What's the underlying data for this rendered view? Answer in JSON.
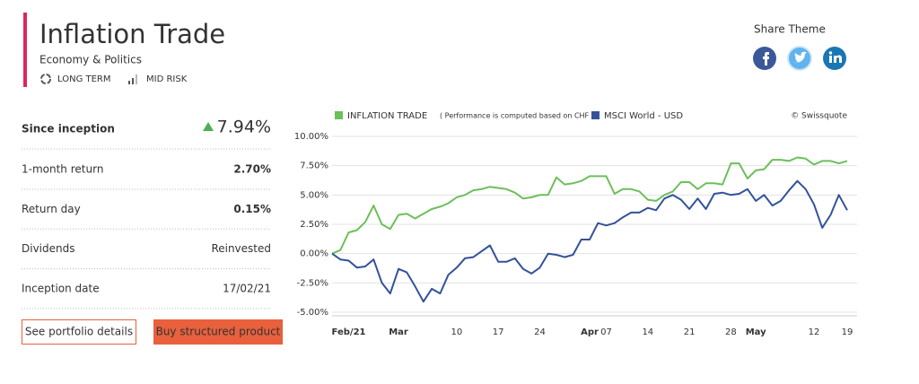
{
  "header": {
    "title": "Inflation Trade",
    "subtitle": "Economy & Politics",
    "tags": [
      "LONG TERM",
      "MID RISK"
    ]
  },
  "share": {
    "title": "Share Theme"
  },
  "stats": {
    "headline": {
      "label": "Since inception",
      "value": "7.94%"
    },
    "rows": [
      [
        "1-month return",
        "2.70%"
      ],
      [
        "Return day",
        "0.15%"
      ],
      [
        "Dividends",
        "Reinvested"
      ],
      [
        "Inception date",
        "17/02/21"
      ]
    ]
  },
  "buttons": [
    "See portfolio details",
    "Buy structured product"
  ],
  "chart_data": {
    "type": "line",
    "note": "( Performance is computed based on CHF )",
    "credit": "© Swissquote",
    "categories": [
      null,
      null,
      "Feb/21",
      null,
      null,
      null,
      null,
      null,
      "Mar",
      null,
      null,
      null,
      null,
      null,
      null,
      "10",
      null,
      null,
      null,
      null,
      "17",
      null,
      null,
      null,
      null,
      "24",
      null,
      null,
      null,
      null,
      null,
      "Apr",
      null,
      "07",
      null,
      null,
      null,
      null,
      "14",
      null,
      null,
      null,
      null,
      "21",
      null,
      null,
      null,
      null,
      "28",
      null,
      null,
      "May",
      null,
      null,
      null,
      null,
      null,
      null,
      "12",
      null,
      null,
      null,
      "19"
    ],
    "series": [
      {
        "name": "INFLATION TRADE",
        "color": "#6cbf5b",
        "values": [
          0,
          0.3,
          1.8,
          2.0,
          2.7,
          4.1,
          2.5,
          2.1,
          3.3,
          3.4,
          3.0,
          3.4,
          3.8,
          4.0,
          4.3,
          4.8,
          5.0,
          5.4,
          5.5,
          5.7,
          5.6,
          5.5,
          5.2,
          4.7,
          4.8,
          5.0,
          5.0,
          6.5,
          5.9,
          6.0,
          6.2,
          6.6,
          6.6,
          6.6,
          5.1,
          5.5,
          5.5,
          5.3,
          4.6,
          4.5,
          5.0,
          5.3,
          6.1,
          6.1,
          5.5,
          6.0,
          6.0,
          5.9,
          7.7,
          7.7,
          6.4,
          7.1,
          7.2,
          8.0,
          8.0,
          7.9,
          8.2,
          8.1,
          7.6,
          7.9,
          7.9,
          7.7,
          7.9
        ]
      },
      {
        "name": "MSCI World - USD",
        "color": "#34529a",
        "values": [
          0,
          -0.5,
          -0.6,
          -1.2,
          -1.1,
          -0.5,
          -2.5,
          -3.4,
          -1.3,
          -1.6,
          -2.8,
          -4.1,
          -3.0,
          -3.4,
          -1.8,
          -1.2,
          -0.4,
          -0.3,
          0.2,
          0.7,
          -0.7,
          -0.7,
          -0.4,
          -1.3,
          -1.7,
          -1.2,
          0.0,
          -0.1,
          -0.3,
          -0.1,
          1.2,
          1.2,
          2.6,
          2.4,
          2.6,
          3.1,
          3.5,
          3.5,
          3.9,
          3.7,
          4.7,
          5.0,
          4.6,
          3.8,
          4.7,
          3.8,
          5.1,
          5.2,
          5.0,
          5.1,
          5.5,
          4.5,
          5.0,
          4.1,
          4.5,
          5.4,
          6.2,
          5.5,
          4.2,
          2.2,
          3.3,
          5.0,
          3.7
        ]
      }
    ],
    "ylim": [
      -5,
      10
    ],
    "yticks": [
      {
        "value": -5,
        "label": "-5.00%"
      },
      {
        "value": -2.5,
        "label": "-2.50%"
      },
      {
        "value": 0,
        "label": "0.00%"
      },
      {
        "value": 2.5,
        "label": "2.50%"
      },
      {
        "value": 5,
        "label": "5.00%"
      },
      {
        "value": 7.5,
        "label": "7.50%"
      },
      {
        "value": 10,
        "label": "10.00%"
      }
    ],
    "grid": true
  }
}
